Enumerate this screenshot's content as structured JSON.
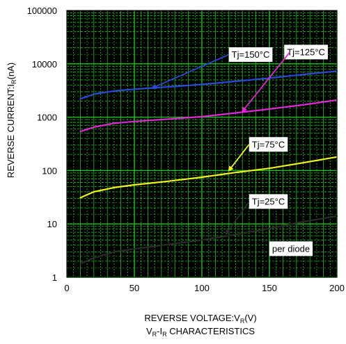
{
  "chart_data": {
    "type": "line",
    "title": "V_R-I_R CHARACTERISTICS",
    "title_parts": {
      "main": "V",
      "sub1": "R",
      "mid": "-I",
      "sub2": "R",
      "rest": " CHARACTERISTICS"
    },
    "xlabel": "REVERSE VOLTAGE:V_R(V)",
    "xlabel_parts": {
      "main": "REVERSE VOLTAGE:V",
      "sub": "R",
      "rest": "(V)"
    },
    "ylabel": "REVERSE CURRENT:I_R(nA)",
    "ylabel_parts": {
      "main": "REVERSE CURRENT:I",
      "sub": "R",
      "rest": "(nA)"
    },
    "x_scale": "linear",
    "y_scale": "log",
    "xlim": [
      0,
      200
    ],
    "ylim": [
      1,
      100000
    ],
    "x_ticks": [
      "0",
      "50",
      "100",
      "150",
      "200"
    ],
    "x_tick_values": [
      0,
      50,
      100,
      150,
      200
    ],
    "y_ticks": [
      "1",
      "10",
      "100",
      "1000",
      "10000",
      "100000"
    ],
    "y_tick_values": [
      1,
      10,
      100,
      1000,
      10000,
      100000
    ],
    "grid": true,
    "background_color": "#000000",
    "grid_color": "#19c619",
    "series": [
      {
        "name": "Tj=150°C",
        "color": "#2d49d8",
        "x": [
          10,
          20,
          35,
          50,
          75,
          100,
          125,
          150,
          175,
          200
        ],
        "y": [
          2200,
          2700,
          3100,
          3350,
          3700,
          4100,
          4700,
          5400,
          6300,
          7300
        ]
      },
      {
        "name": "Tj=125°C",
        "color": "#e028d6",
        "x": [
          10,
          20,
          35,
          50,
          75,
          100,
          125,
          150,
          175,
          200
        ],
        "y": [
          540,
          650,
          770,
          830,
          920,
          1020,
          1200,
          1420,
          1700,
          2100
        ]
      },
      {
        "name": "Tj=75°C",
        "color": "#f5f51e",
        "x": [
          10,
          20,
          35,
          50,
          75,
          100,
          125,
          150,
          175,
          200
        ],
        "y": [
          31,
          40,
          48,
          54,
          63,
          75,
          92,
          110,
          140,
          180
        ]
      },
      {
        "name": "Tj=25°C",
        "color": "#2b2b2b",
        "x": [
          10,
          20,
          35,
          50,
          75,
          100,
          125,
          150,
          175,
          200
        ],
        "y": [
          1.8,
          2.3,
          3.0,
          3.4,
          4.1,
          5.0,
          6.3,
          8.2,
          11.0,
          14.0
        ]
      }
    ],
    "annotations": [
      {
        "text": "Tj=150°C",
        "series": 0,
        "arrow_to_x": 63,
        "arrow_to_y": 3500,
        "label_x": 122,
        "label_y": 13000
      },
      {
        "text": "Tj=125°C",
        "series": 1,
        "arrow_to_x": 130,
        "arrow_to_y": 1280,
        "label_x": 163,
        "label_y": 14500
      },
      {
        "text": "Tj=75°C",
        "series": 2,
        "arrow_to_x": 120,
        "arrow_to_y": 100,
        "label_x": 137,
        "label_y": 270
      },
      {
        "text": "Tj=25°C",
        "series": 3,
        "arrow_to_x": 118,
        "arrow_to_y": 6.5,
        "label_x": 137,
        "label_y": 23
      },
      {
        "text": "per diode",
        "series": null,
        "label_x": 152,
        "label_y": 3.0
      }
    ]
  }
}
